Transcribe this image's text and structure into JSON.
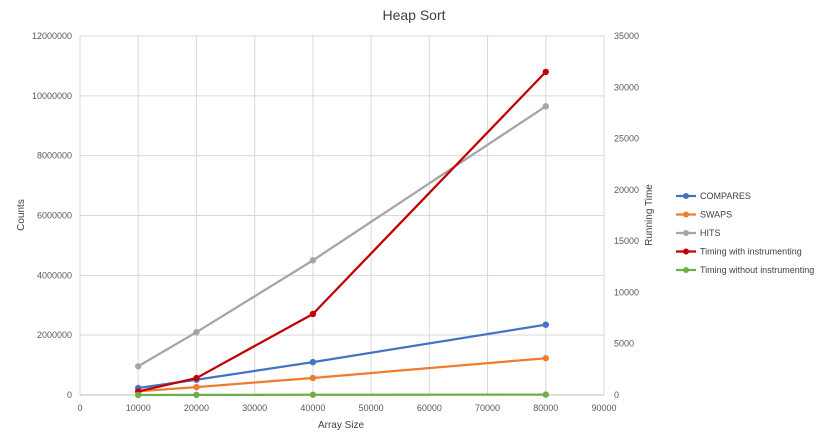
{
  "chart_data": {
    "type": "scatter",
    "title": "Heap Sort",
    "xlabel": "Array Size",
    "ylabel": "Counts",
    "y2label": "Running Time",
    "xlim": [
      0,
      90000
    ],
    "ylim": [
      0,
      12000000
    ],
    "y2lim": [
      0,
      35000
    ],
    "xticks": [
      "0",
      "10000",
      "20000",
      "30000",
      "40000",
      "50000",
      "60000",
      "70000",
      "80000",
      "90000"
    ],
    "yticks": [
      "0",
      "2000000",
      "4000000",
      "6000000",
      "8000000",
      "10000000",
      "12000000"
    ],
    "y2ticks": [
      "0",
      "5000",
      "10000",
      "15000",
      "20000",
      "25000",
      "30000",
      "35000"
    ],
    "grid": true,
    "legend_position": "right",
    "series": [
      {
        "name": "COMPARES",
        "axis": "left",
        "color": "#4472C4",
        "x": [
          10000,
          20000,
          40000,
          80000
        ],
        "y": [
          235000,
          510000,
          1100000,
          2350000
        ]
      },
      {
        "name": "SWAPS",
        "axis": "left",
        "color": "#ED7D31",
        "x": [
          10000,
          20000,
          40000,
          80000
        ],
        "y": [
          125000,
          265000,
          570000,
          1230000
        ]
      },
      {
        "name": "HITS",
        "axis": "left",
        "color": "#A5A5A5",
        "x": [
          10000,
          20000,
          40000,
          80000
        ],
        "y": [
          960000,
          2100000,
          4500000,
          9650000
        ]
      },
      {
        "name": "Timing with instrumenting",
        "axis": "right",
        "color": "#C00000",
        "x": [
          10000,
          20000,
          40000,
          80000
        ],
        "y": [
          350,
          1650,
          7900,
          31500
        ]
      },
      {
        "name": "Timing without instrumenting",
        "axis": "right",
        "color": "#70AD47",
        "x": [
          10000,
          20000,
          40000,
          80000
        ],
        "y": [
          5,
          10,
          20,
          40
        ]
      }
    ]
  }
}
